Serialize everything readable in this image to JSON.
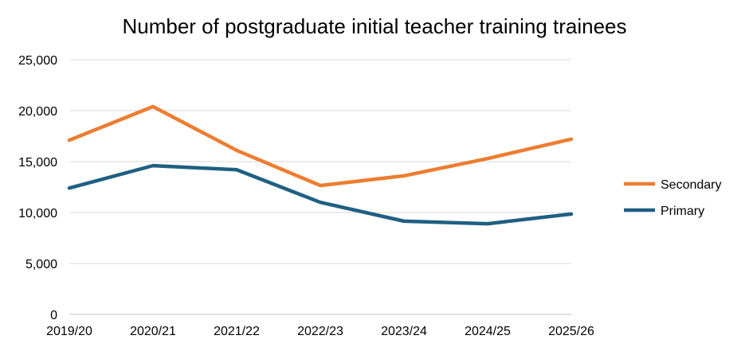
{
  "chart_data": {
    "type": "line",
    "title": "Number of postgraduate initial teacher training trainees",
    "xlabel": "",
    "ylabel": "",
    "categories": [
      "2019/20",
      "2020/21",
      "2021/22",
      "2022/23",
      "2023/24",
      "2024/25",
      "2025/26"
    ],
    "ylim": [
      0,
      25000
    ],
    "yticks": [
      0,
      5000,
      10000,
      15000,
      20000,
      25000
    ],
    "ytick_labels": [
      "0",
      "5,000",
      "10,000",
      "15,000",
      "20,000",
      "25,000"
    ],
    "grid": true,
    "legend_position": "right",
    "series": [
      {
        "name": "Secondary",
        "color": "#ED7D31",
        "values": [
          17100,
          20400,
          16100,
          12650,
          13600,
          15300,
          17200
        ]
      },
      {
        "name": "Primary",
        "color": "#1F5F82",
        "values": [
          12400,
          14600,
          14200,
          11000,
          9150,
          8900,
          9850
        ]
      }
    ]
  }
}
